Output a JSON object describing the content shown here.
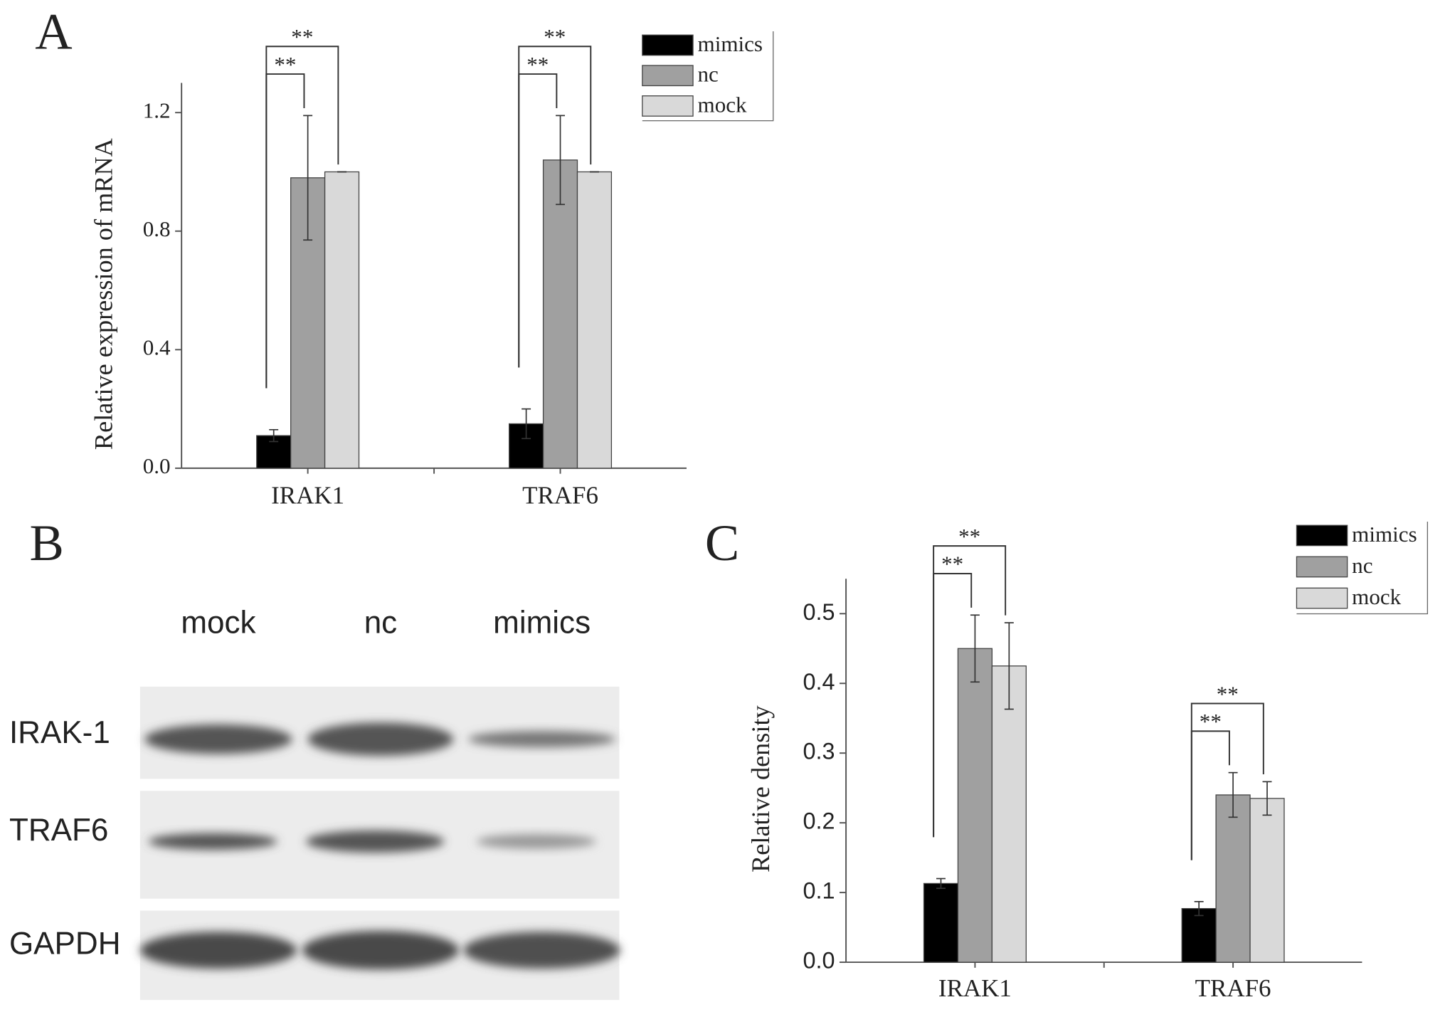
{
  "chart_data": [
    {
      "type": "bar",
      "panel_label": "A",
      "ylabel": "Relative expression of mRNA",
      "categories": [
        "IRAK1",
        "TRAF6"
      ],
      "series": [
        {
          "name": "mimics",
          "color": "#000000",
          "values": [
            0.11,
            0.15
          ],
          "errors": [
            0.02,
            0.05
          ]
        },
        {
          "name": "nc",
          "color": "#a0a0a0",
          "values": [
            0.98,
            1.04
          ],
          "errors": [
            0.21,
            0.15
          ]
        },
        {
          "name": "mock",
          "color": "#d9d9d9",
          "values": [
            1.0,
            1.0
          ],
          "errors": [
            0,
            0
          ]
        }
      ],
      "ylim": [
        0,
        1.3
      ],
      "yticks": [
        {
          "value": 0,
          "label": "0.0"
        },
        0.4,
        0.8,
        1.2
      ],
      "legend": "top-right",
      "annotations": [
        {
          "label": "**",
          "category": 0,
          "series": [
            0,
            1
          ]
        },
        {
          "label": "**",
          "category": 0,
          "series": [
            0,
            2
          ]
        },
        {
          "label": "**",
          "category": 1,
          "series": [
            0,
            1
          ]
        },
        {
          "label": "**",
          "category": 1,
          "series": [
            0,
            2
          ]
        }
      ]
    },
    {
      "type": "bar",
      "panel_label": "C",
      "ylabel": "Relative density",
      "categories": [
        "IRAK1",
        "TRAF6"
      ],
      "series": [
        {
          "name": "mimics",
          "color": "#000000",
          "values": [
            0.113,
            0.077
          ],
          "errors": [
            0.007,
            0.01
          ]
        },
        {
          "name": "nc",
          "color": "#a0a0a0",
          "values": [
            0.45,
            0.24
          ],
          "errors": [
            0.048,
            0.032
          ]
        },
        {
          "name": "mock",
          "color": "#d9d9d9",
          "values": [
            0.425,
            0.235
          ],
          "errors": [
            0.062,
            0.024
          ]
        }
      ],
      "ylim": [
        0,
        0.55
      ],
      "yticks": [
        {
          "value": 0,
          "label": "0.0"
        },
        0.1,
        0.2,
        0.3,
        0.4,
        0.5
      ],
      "legend": "top-right",
      "annotations": [
        {
          "label": "**",
          "category": 0,
          "series": [
            0,
            1
          ]
        },
        {
          "label": "**",
          "category": 0,
          "series": [
            0,
            2
          ]
        },
        {
          "label": "**",
          "category": 1,
          "series": [
            0,
            1
          ]
        },
        {
          "label": "**",
          "category": 1,
          "series": [
            0,
            2
          ]
        }
      ]
    }
  ],
  "blot": {
    "panel_label": "B",
    "lanes": [
      "mock",
      "nc",
      "mimics"
    ],
    "rows": [
      "IRAK-1",
      "TRAF6",
      "GAPDH"
    ]
  }
}
